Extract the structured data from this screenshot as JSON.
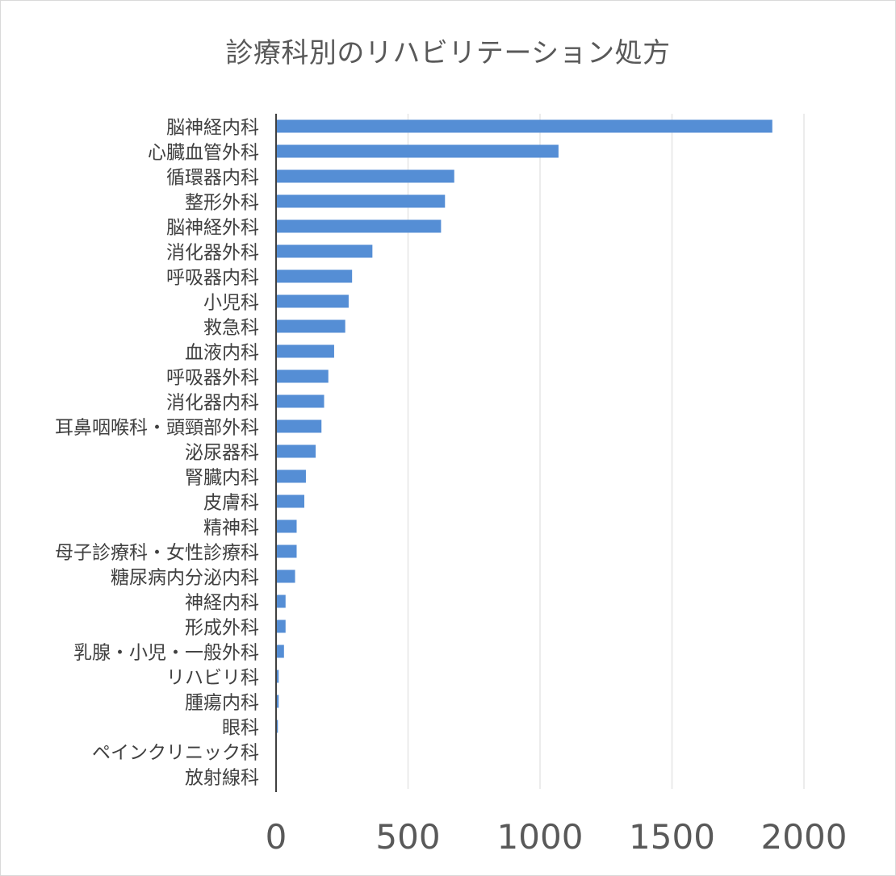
{
  "chart_data": {
    "type": "bar",
    "orientation": "horizontal",
    "title": "診療科別のリハビリテーション処方",
    "xlabel": "",
    "ylabel": "",
    "xlim": [
      0,
      2000
    ],
    "xticks": [
      0,
      500,
      1000,
      1500,
      2000
    ],
    "grid": true,
    "legend": "none",
    "bar_color": "#558ed5",
    "categories": [
      "脳神経内科",
      "心臓血管外科",
      "循環器内科",
      "整形外科",
      "脳神経外科",
      "消化器外科",
      "呼吸器内科",
      "小児科",
      "救急科",
      "血液内科",
      "呼吸器外科",
      "消化器内科",
      "耳鼻咽喉科・頭頸部外科",
      "泌尿器科",
      "腎臓内科",
      "皮膚科",
      "精神科",
      "母子診療科・女性診療科",
      "糖尿病内分泌内科",
      "神経内科",
      "形成外科",
      "乳腺・小児・一般外科",
      "リハビリ科",
      "腫瘍内科",
      "眼科",
      "ペインクリニック科",
      "放射線科"
    ],
    "values": [
      1880,
      1070,
      675,
      640,
      625,
      365,
      288,
      275,
      262,
      220,
      198,
      182,
      172,
      150,
      113,
      107,
      78,
      78,
      72,
      36,
      36,
      30,
      10,
      10,
      7,
      2,
      1
    ]
  }
}
